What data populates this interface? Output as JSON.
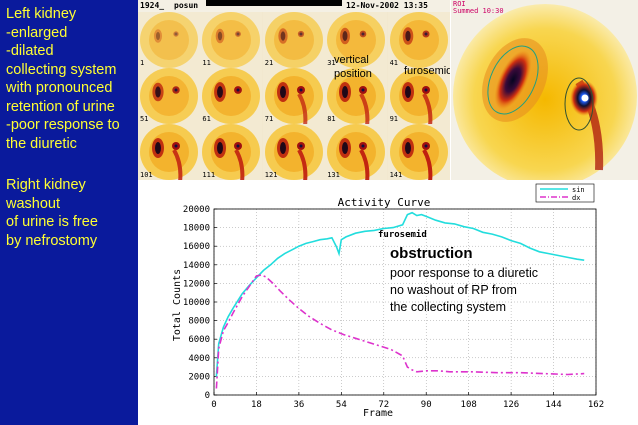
{
  "left_text": {
    "line1": "Left kidney",
    "line2": "-enlarged",
    "line3": "-dilated",
    "line4": "collecting system",
    "line5": "with pronounced",
    "line6": "retention of urine",
    "line7": "-poor response to",
    "line8": "the diuretic",
    "line9": "Right kidney",
    "line10": "washout",
    "line11": "of urine is free",
    "line12": "by nefrostomy"
  },
  "scintigram": {
    "header_id": "1924_",
    "header_name": "posun",
    "header_date": "12-Nov-2002 13:35",
    "frame_numbers": [
      "1",
      "11",
      "21",
      "31",
      "41",
      "51",
      "61",
      "71",
      "81",
      "91",
      "101",
      "111",
      "121",
      "131",
      "141"
    ],
    "label_vertical_1": "vertical",
    "label_vertical_2": "position",
    "label_furosemid": "furosemid"
  },
  "summed": {
    "header_roi": "ROI",
    "header_summed": "Summed 10:30"
  },
  "chart_data": {
    "type": "line",
    "title": "Activity Curve",
    "xlabel": "Frame",
    "ylabel": "Total Counts",
    "xlim": [
      0,
      162
    ],
    "ylim": [
      0,
      20000
    ],
    "x_ticks": [
      "0",
      "18",
      "36",
      "54",
      "72",
      "90",
      "108",
      "126",
      "144",
      "162"
    ],
    "y_ticks": [
      "0",
      "2000",
      "4000",
      "6000",
      "8000",
      "10000",
      "12000",
      "14000",
      "16000",
      "18000",
      "20000"
    ],
    "grid": true,
    "legend_position": "top-right",
    "colors": {
      "sin": "#22dddd",
      "dx": "#dd33cc"
    },
    "series": [
      {
        "name": "sin",
        "x": [
          1,
          2,
          4,
          6,
          8,
          10,
          12,
          15,
          18,
          21,
          24,
          27,
          30,
          33,
          36,
          39,
          42,
          45,
          48,
          50,
          52,
          53,
          54,
          56,
          60,
          64,
          68,
          72,
          76,
          80,
          82,
          84,
          86,
          88,
          90,
          94,
          98,
          102,
          106,
          110,
          114,
          118,
          122,
          126,
          130,
          134,
          138,
          142,
          146,
          150,
          154,
          157
        ],
        "values": [
          2000,
          5500,
          7300,
          8400,
          9300,
          10100,
          10900,
          11800,
          12600,
          13400,
          14000,
          14700,
          15200,
          15600,
          16000,
          16300,
          16500,
          16700,
          16800,
          16900,
          15900,
          15200,
          16700,
          17000,
          17400,
          17600,
          17700,
          17900,
          18000,
          18300,
          19400,
          19600,
          19300,
          19400,
          19200,
          18800,
          18500,
          18400,
          18100,
          17900,
          17500,
          17300,
          17000,
          16600,
          16300,
          15800,
          15400,
          15200,
          15000,
          14800,
          14600,
          14500
        ]
      },
      {
        "name": "dx",
        "x": [
          1,
          2,
          4,
          6,
          8,
          10,
          12,
          15,
          18,
          20,
          22,
          25,
          28,
          32,
          36,
          40,
          45,
          50,
          55,
          60,
          65,
          70,
          75,
          80,
          82,
          84,
          86,
          90,
          95,
          100,
          110,
          120,
          130,
          140,
          150,
          157
        ],
        "values": [
          700,
          5000,
          6900,
          7800,
          8800,
          9700,
          10600,
          11700,
          12800,
          12900,
          12700,
          12000,
          11200,
          10200,
          9300,
          8500,
          7700,
          7000,
          6500,
          6100,
          5700,
          5300,
          4900,
          4200,
          3000,
          2700,
          2500,
          2600,
          2600,
          2500,
          2500,
          2400,
          2400,
          2300,
          2200,
          2300
        ]
      }
    ],
    "annotation_furosemid": "furosemid",
    "annotation_title": "obstruction",
    "annotation_line1": "poor response to a diuretic",
    "annotation_line2": "no washout of RP from",
    "annotation_line3": "the collecting system"
  }
}
